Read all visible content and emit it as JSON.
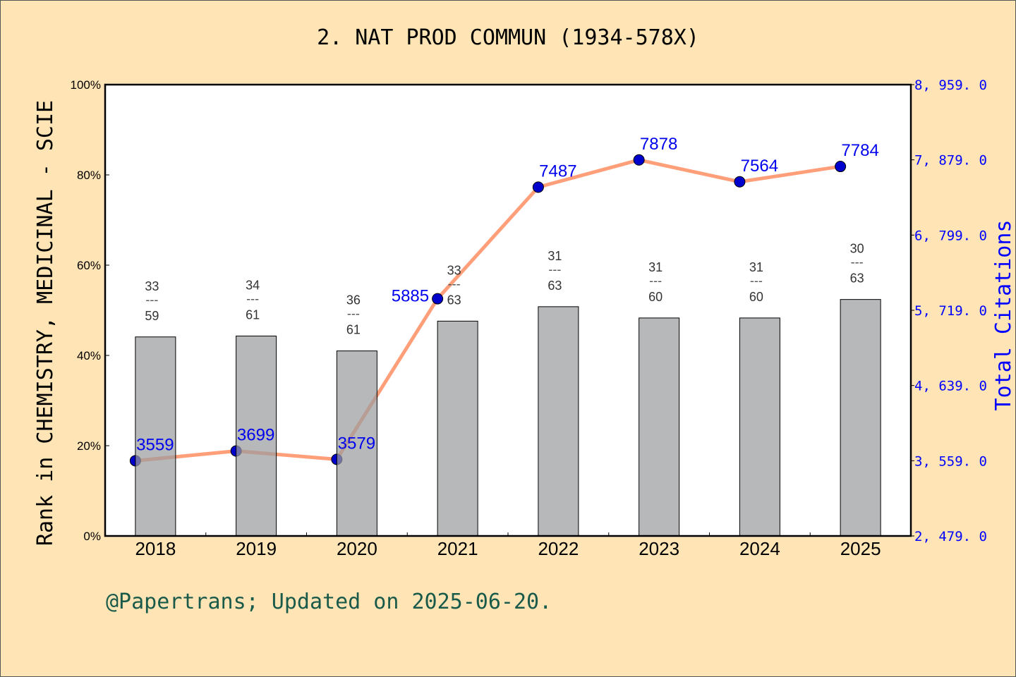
{
  "title": "2. NAT PROD COMMUN (1934-578X)",
  "footer": "@Papertrans; Updated on 2025-06-20.",
  "chart_data": {
    "type": "bar+line",
    "categories": [
      "2018",
      "2019",
      "2020",
      "2021",
      "2022",
      "2023",
      "2024",
      "2025"
    ],
    "bar_series": {
      "values_percent": [
        44.1,
        44.3,
        41.0,
        47.6,
        50.8,
        48.3,
        48.3,
        52.4
      ],
      "rank_labels": [
        {
          "rank": "33",
          "total": "59"
        },
        {
          "rank": "34",
          "total": "61"
        },
        {
          "rank": "36",
          "total": "61"
        },
        {
          "rank": "33",
          "total": "63"
        },
        {
          "rank": "31",
          "total": "63"
        },
        {
          "rank": "31",
          "total": "60"
        },
        {
          "rank": "31",
          "total": "60"
        },
        {
          "rank": "30",
          "total": "63"
        }
      ],
      "color": "#b8b9ba"
    },
    "line_series": {
      "values": [
        3559,
        3699,
        3579,
        5885,
        7487,
        7878,
        7564,
        7784
      ],
      "labels": [
        "3559",
        "3699",
        "3579",
        "5885",
        "7487",
        "7878",
        "7564",
        "7784"
      ],
      "line_color": "#ff9f7a",
      "marker_color": "#0000cc"
    },
    "ylabel": "Rank in CHEMISTRY, MEDICINAL - SCIE",
    "y2label": "Total Citations",
    "ylim": [
      0,
      100
    ],
    "y_ticks": [
      "0%",
      "20%",
      "40%",
      "60%",
      "80%",
      "100%"
    ],
    "y2lim": [
      2479,
      8959
    ],
    "y2_ticks": [
      "2, 479. 0",
      "3, 559. 0",
      "4, 639. 0",
      "5, 719. 0",
      "6, 799. 0",
      "7, 879. 0",
      "8, 959. 0"
    ],
    "y2_color": "#0000ff",
    "grid": false
  }
}
